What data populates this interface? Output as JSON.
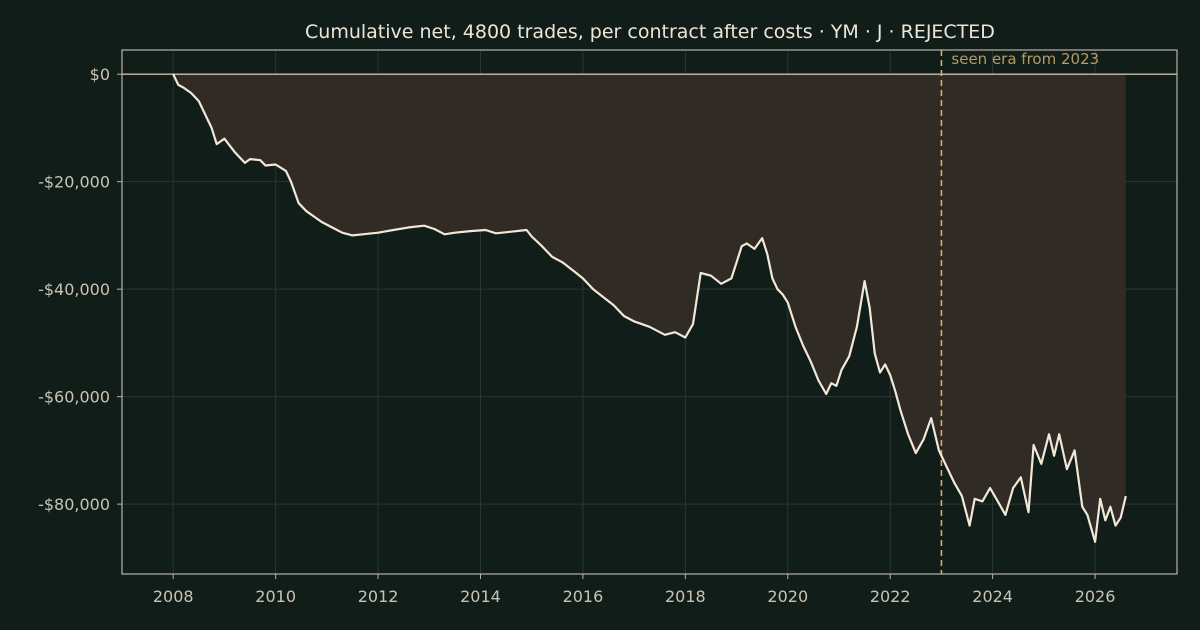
{
  "chart_data": {
    "type": "line",
    "title": "Cumulative net, 4800 trades, per contract after costs  ·  YM · J · REJECTED",
    "xlabel": "",
    "ylabel": "",
    "xlim": [
      2007.0,
      2027.6
    ],
    "ylim": [
      -93000,
      4500
    ],
    "x_ticks": [
      2008,
      2010,
      2012,
      2014,
      2016,
      2018,
      2020,
      2022,
      2024,
      2026
    ],
    "x_tick_labels": [
      "2008",
      "2010",
      "2012",
      "2014",
      "2016",
      "2018",
      "2020",
      "2022",
      "2024",
      "2026"
    ],
    "y_ticks": [
      0,
      -20000,
      -40000,
      -60000,
      -80000
    ],
    "y_tick_labels": [
      "$0",
      "-$20,000",
      "-$40,000",
      "-$60,000",
      "-$80,000"
    ],
    "grid": true,
    "fill": "drawdown area between running peak and curve",
    "series": [
      {
        "x": [
          2008.0,
          2008.1,
          2008.2,
          2008.35,
          2008.5,
          2008.6,
          2008.75,
          2008.85,
          2009.0,
          2009.2,
          2009.4,
          2009.5,
          2009.7,
          2009.8,
          2010.0,
          2010.2,
          2010.3,
          2010.45,
          2010.6,
          2010.75,
          2010.9,
          2011.1,
          2011.3,
          2011.5,
          2011.7,
          2012.0,
          2012.3,
          2012.6,
          2012.9,
          2013.1,
          2013.3,
          2013.5,
          2013.8,
          2014.1,
          2014.3,
          2014.6,
          2014.9,
          2015.0,
          2015.2,
          2015.4,
          2015.6,
          2015.8,
          2016.0,
          2016.2,
          2016.4,
          2016.6,
          2016.8,
          2017.0,
          2017.3,
          2017.6,
          2017.8,
          2018.0,
          2018.15,
          2018.3,
          2018.5,
          2018.7,
          2018.9,
          2019.0,
          2019.1,
          2019.2,
          2019.35,
          2019.5,
          2019.6,
          2019.7,
          2019.8,
          2019.9,
          2020.0,
          2020.15,
          2020.3,
          2020.45,
          2020.6,
          2020.75,
          2020.85,
          2020.95,
          2021.05,
          2021.2,
          2021.35,
          2021.5,
          2021.6,
          2021.7,
          2021.8,
          2021.9,
          2022.0,
          2022.1,
          2022.2,
          2022.35,
          2022.5,
          2022.65,
          2022.8,
          2022.95,
          2023.1,
          2023.25,
          2023.4,
          2023.55,
          2023.65,
          2023.8,
          2023.95,
          2024.1,
          2024.25,
          2024.4,
          2024.55,
          2024.7,
          2024.8,
          2024.95,
          2025.1,
          2025.2,
          2025.3,
          2025.45,
          2025.6,
          2025.75,
          2025.85,
          2026.0,
          2026.1,
          2026.2,
          2026.3,
          2026.4,
          2026.5,
          2026.6
        ],
        "y": [
          0,
          -2000,
          -2500,
          -3500,
          -5000,
          -7000,
          -10000,
          -13000,
          -12000,
          -14500,
          -16500,
          -15800,
          -16000,
          -17000,
          -16800,
          -18000,
          -20000,
          -24000,
          -25500,
          -26500,
          -27500,
          -28500,
          -29500,
          -30000,
          -29800,
          -29500,
          -29000,
          -28500,
          -28200,
          -28800,
          -29800,
          -29500,
          -29200,
          -29000,
          -29600,
          -29300,
          -29000,
          -30200,
          -32000,
          -34000,
          -35000,
          -36500,
          -38000,
          -40000,
          -41500,
          -43000,
          -45000,
          -46000,
          -47000,
          -48500,
          -48000,
          -49000,
          -46500,
          -37000,
          -37500,
          -39000,
          -38000,
          -35000,
          -32000,
          -31500,
          -32500,
          -30500,
          -33500,
          -38000,
          -40000,
          -41000,
          -42500,
          -47000,
          -50500,
          -53500,
          -57000,
          -59500,
          -57500,
          -58000,
          -55000,
          -52500,
          -47000,
          -38500,
          -43500,
          -52000,
          -55500,
          -54000,
          -56000,
          -59000,
          -62500,
          -67000,
          -70500,
          -68000,
          -64000,
          -70000,
          -73000,
          -76000,
          -78500,
          -84000,
          -79000,
          -79500,
          -77000,
          -79500,
          -82000,
          -77000,
          -75000,
          -81500,
          -69000,
          -72500,
          -67000,
          -71000,
          -67000,
          -73500,
          -70000,
          -80500,
          -82000,
          -87000,
          -79000,
          -83000,
          -80500,
          -84000,
          -82500,
          -78500
        ]
      }
    ],
    "annotations": [
      {
        "type": "vline",
        "x": 2023.0,
        "text": "seen era from 2023",
        "color": "#d7ab66"
      }
    ],
    "colors": {
      "background": "#101d18",
      "line": "#f1e8d8",
      "fill": "#312b26",
      "grid": "#2a3630",
      "axis": "#b9b3a5",
      "zero_line": "#c8bfae"
    }
  }
}
